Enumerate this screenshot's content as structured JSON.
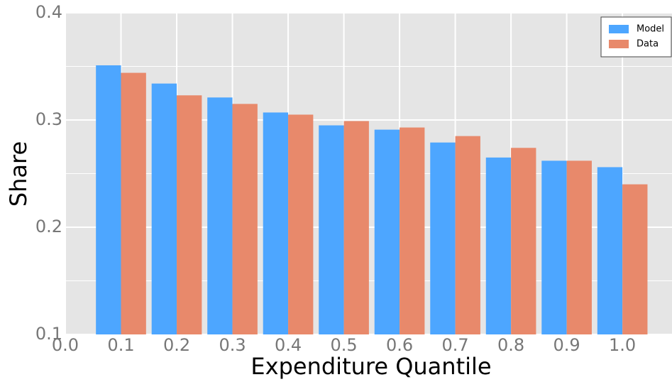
{
  "chart_data": {
    "type": "bar",
    "xlabel": "Expenditure Quantile",
    "ylabel": "Share",
    "x": [
      0.1,
      0.2,
      0.3,
      0.4,
      0.5,
      0.6,
      0.7,
      0.8,
      0.9,
      1.0
    ],
    "series": [
      {
        "name": "Model",
        "color": "#4da6ff",
        "values": [
          0.351,
          0.334,
          0.321,
          0.307,
          0.295,
          0.291,
          0.279,
          0.265,
          0.262,
          0.256
        ]
      },
      {
        "name": "Data",
        "color": "#e8896b",
        "values": [
          0.344,
          0.323,
          0.315,
          0.305,
          0.299,
          0.293,
          0.285,
          0.274,
          0.262,
          0.24
        ]
      }
    ],
    "xlim": [
      0.0,
      1.089
    ],
    "xticks": [
      {
        "value": 0.0,
        "label": "0.0"
      },
      0.1,
      0.2,
      0.3,
      0.4,
      0.5,
      0.6,
      0.7,
      0.8,
      0.9,
      {
        "value": 1.0,
        "label": "1.0"
      }
    ],
    "ylim": [
      0.1,
      0.4
    ],
    "yticks": [
      0.1,
      0.2,
      0.3,
      0.4
    ],
    "y_minor_ticks": [
      0.15,
      0.25,
      0.35
    ],
    "grid": true,
    "legend": "upper right"
  }
}
